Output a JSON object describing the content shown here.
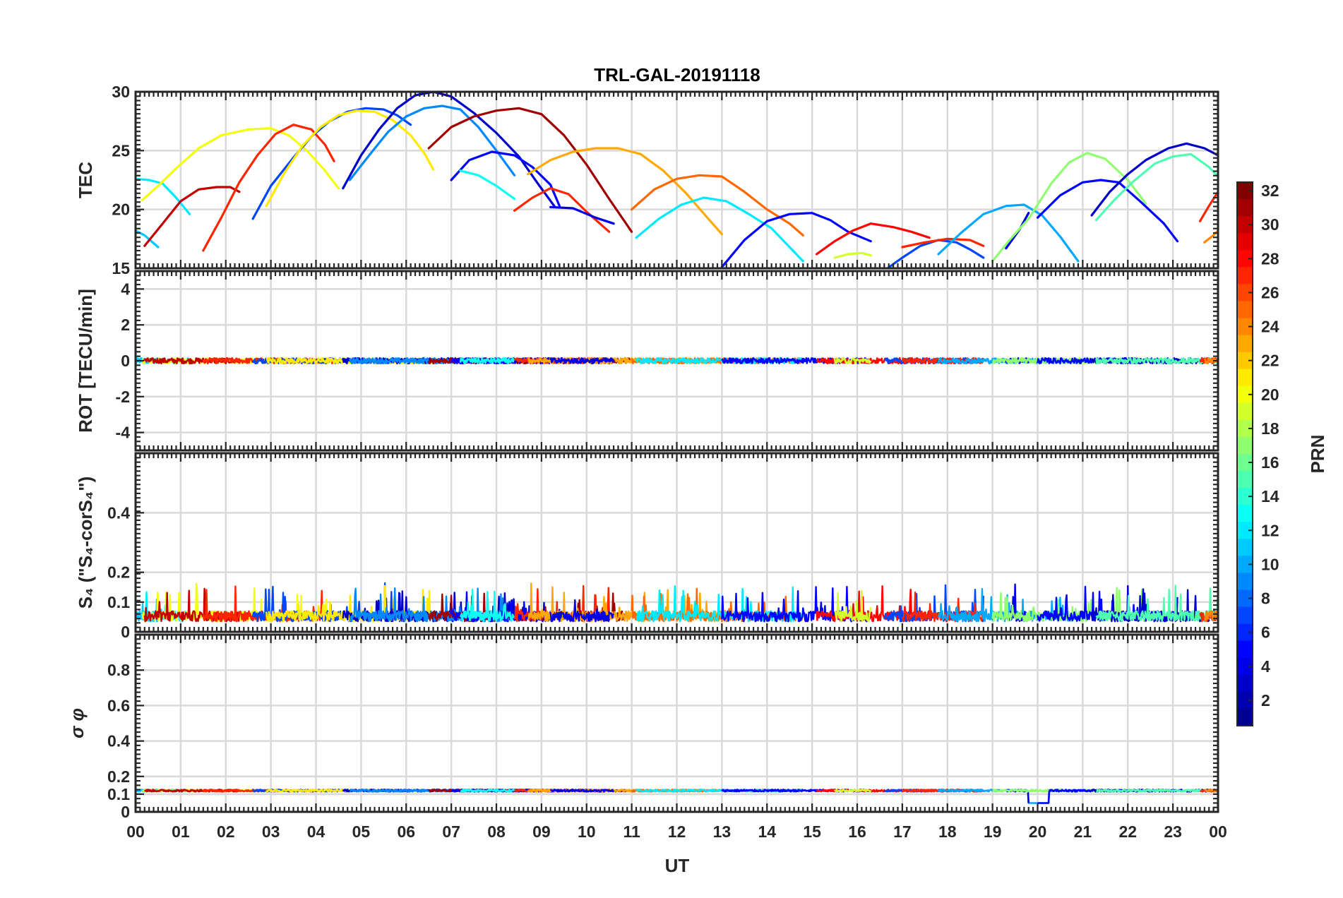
{
  "chart_data": {
    "type": "line",
    "title": "TRL-GAL-20191118",
    "xlabel": "UT",
    "xlim": [
      0,
      24
    ],
    "x_tick_labels": [
      "00",
      "01",
      "02",
      "03",
      "04",
      "05",
      "06",
      "07",
      "08",
      "09",
      "10",
      "11",
      "12",
      "13",
      "14",
      "15",
      "16",
      "17",
      "18",
      "19",
      "20",
      "21",
      "22",
      "23",
      "00"
    ],
    "grid": true,
    "colorbar": {
      "label": "PRN",
      "range": [
        1,
        32
      ],
      "tick_labels": [
        "2",
        "4",
        "6",
        "8",
        "10",
        "12",
        "14",
        "16",
        "18",
        "20",
        "22",
        "24",
        "26",
        "28",
        "30",
        "32"
      ],
      "tick_values": [
        2,
        4,
        6,
        8,
        10,
        12,
        14,
        16,
        18,
        20,
        22,
        24,
        26,
        28,
        30,
        32
      ],
      "colormap": "jet",
      "colormap_stops": [
        "#00008f",
        "#0000ff",
        "#00ffff",
        "#ffff00",
        "#ff0000",
        "#800000"
      ]
    },
    "panels": [
      {
        "id": "tec",
        "ylabel": "TEC",
        "ylim": [
          15,
          30
        ],
        "y_ticks": [
          15,
          20,
          25,
          30
        ],
        "y_tick_labels": [
          "15",
          "20",
          "25",
          "30"
        ],
        "series": [
          {
            "prn": 12,
            "x": [
              0.0,
              0.3,
              0.6,
              0.9,
              1.2
            ],
            "y": [
              22.6,
              22.5,
              22.2,
              21.0,
              19.6
            ]
          },
          {
            "prn": 11,
            "x": [
              0.0,
              0.2,
              0.5
            ],
            "y": [
              18.2,
              17.8,
              16.8
            ]
          },
          {
            "prn": 20,
            "x": [
              0.15,
              0.5,
              0.9,
              1.4,
              1.9,
              2.5,
              3.0,
              3.4,
              3.8,
              4.2,
              4.5
            ],
            "y": [
              20.8,
              22.0,
              23.5,
              25.2,
              26.3,
              26.8,
              26.9,
              26.3,
              25.0,
              23.3,
              21.8
            ]
          },
          {
            "prn": 30,
            "x": [
              0.2,
              0.6,
              1.0,
              1.4,
              1.8,
              2.1,
              2.3
            ],
            "y": [
              16.9,
              18.8,
              20.7,
              21.7,
              21.9,
              21.9,
              21.5
            ]
          },
          {
            "prn": 27,
            "x": [
              1.5,
              1.9,
              2.3,
              2.7,
              3.1,
              3.5,
              3.9,
              4.2,
              4.4
            ],
            "y": [
              16.5,
              19.3,
              22.3,
              24.6,
              26.4,
              27.2,
              26.8,
              25.5,
              24.1
            ]
          },
          {
            "prn": 7,
            "x": [
              2.6,
              3.0,
              3.5,
              3.9,
              4.3,
              4.7,
              5.1,
              5.5,
              5.8,
              6.1
            ],
            "y": [
              19.2,
              22.0,
              24.4,
              26.2,
              27.5,
              28.3,
              28.6,
              28.5,
              28.0,
              27.2
            ]
          },
          {
            "prn": 21,
            "x": [
              2.9,
              3.3,
              3.7,
              4.1,
              4.5,
              4.9,
              5.3,
              5.7,
              6.1,
              6.4,
              6.6
            ],
            "y": [
              20.3,
              23.1,
              25.4,
              27.0,
              28.0,
              28.4,
              28.3,
              27.6,
              26.3,
              24.8,
              23.4
            ]
          },
          {
            "prn": 3,
            "x": [
              4.6,
              5.0,
              5.4,
              5.8,
              6.2,
              6.6,
              7.0,
              7.5,
              8.0,
              8.5,
              8.9,
              9.3
            ],
            "y": [
              21.8,
              24.6,
              26.8,
              28.6,
              29.7,
              30.0,
              29.6,
              28.2,
              26.5,
              24.5,
              22.3,
              20.2
            ]
          },
          {
            "prn": 9,
            "x": [
              4.75,
              5.2,
              5.6,
              6.0,
              6.4,
              6.8,
              7.2,
              7.6,
              8.0,
              8.4
            ],
            "y": [
              22.5,
              24.7,
              26.6,
              27.9,
              28.6,
              28.8,
              28.5,
              27.0,
              25.0,
              22.9
            ]
          },
          {
            "prn": 31,
            "x": [
              6.5,
              7.0,
              7.5,
              8.0,
              8.5,
              9.0,
              9.5,
              10.0,
              10.5,
              11.0
            ],
            "y": [
              25.2,
              27.0,
              27.9,
              28.4,
              28.6,
              28.1,
              26.3,
              23.8,
              20.9,
              18.1
            ]
          },
          {
            "prn": 5,
            "x": [
              7.0,
              7.4,
              7.9,
              8.4,
              8.8,
              9.2,
              9.4
            ],
            "y": [
              22.5,
              24.2,
              24.9,
              24.6,
              23.6,
              22.1,
              20.3
            ]
          },
          {
            "prn": 13,
            "x": [
              7.2,
              7.6,
              8.0,
              8.4
            ],
            "y": [
              23.3,
              22.9,
              22.0,
              20.9
            ]
          },
          {
            "prn": 27,
            "x": [
              8.4,
              8.8,
              9.2,
              9.6,
              10.0,
              10.5
            ],
            "y": [
              19.9,
              21.0,
              21.8,
              21.3,
              19.8,
              18.1
            ]
          },
          {
            "prn": 23,
            "x": [
              8.7,
              9.2,
              9.7,
              10.2,
              10.7,
              11.2,
              11.7,
              12.2,
              12.7,
              13.0
            ],
            "y": [
              23.0,
              24.2,
              24.9,
              25.2,
              25.2,
              24.7,
              23.3,
              21.4,
              19.2,
              17.9
            ]
          },
          {
            "prn": 4,
            "x": [
              9.2,
              9.7,
              10.2,
              10.6
            ],
            "y": [
              20.2,
              20.1,
              19.3,
              18.8
            ]
          },
          {
            "prn": 25,
            "x": [
              11.0,
              11.5,
              12.0,
              12.5,
              13.0,
              13.5,
              14.0,
              14.5,
              14.8
            ],
            "y": [
              20.0,
              21.7,
              22.6,
              22.9,
              22.8,
              21.5,
              20.0,
              18.8,
              17.8
            ]
          },
          {
            "prn": 12,
            "x": [
              11.1,
              11.6,
              12.1,
              12.6,
              13.1,
              13.6,
              14.1,
              14.5,
              14.8
            ],
            "y": [
              17.6,
              19.2,
              20.4,
              21.0,
              20.7,
              19.6,
              18.4,
              16.8,
              15.6
            ]
          },
          {
            "prn": 5,
            "x": [
              13.0,
              13.5,
              14.0,
              14.5,
              15.0,
              15.4,
              15.8,
              16.3
            ],
            "y": [
              15.1,
              17.4,
              19.0,
              19.6,
              19.7,
              19.1,
              18.1,
              17.3
            ]
          },
          {
            "prn": 28,
            "x": [
              15.1,
              15.5,
              15.9,
              16.3,
              16.8,
              17.2,
              17.6
            ],
            "y": [
              16.2,
              17.3,
              18.2,
              18.8,
              18.5,
              18.1,
              17.6
            ]
          },
          {
            "prn": 19,
            "x": [
              15.5,
              15.8,
              16.1,
              16.3
            ],
            "y": [
              15.9,
              16.2,
              16.3,
              16.1
            ]
          },
          {
            "prn": 7,
            "x": [
              16.6,
              17.0,
              17.4,
              17.8,
              18.2,
              18.5,
              18.8
            ],
            "y": [
              14.8,
              15.9,
              16.9,
              17.4,
              17.2,
              16.6,
              15.9
            ]
          },
          {
            "prn": 27,
            "x": [
              17.0,
              17.5,
              18.0,
              18.5,
              18.8
            ],
            "y": [
              16.8,
              17.2,
              17.5,
              17.4,
              16.9
            ]
          },
          {
            "prn": 10,
            "x": [
              17.8,
              18.3,
              18.8,
              19.3,
              19.7,
              20.1,
              20.5,
              20.9
            ],
            "y": [
              16.2,
              18.0,
              19.6,
              20.3,
              20.4,
              19.5,
              17.7,
              15.6
            ]
          },
          {
            "prn": 4,
            "x": [
              19.3,
              19.6,
              19.8
            ],
            "y": [
              16.7,
              18.3,
              19.7
            ]
          },
          {
            "prn": 17,
            "x": [
              19.0,
              19.4,
              19.8,
              20.3,
              20.7,
              21.1,
              21.5,
              22.0,
              22.4
            ],
            "y": [
              15.6,
              17.5,
              19.2,
              22.2,
              24.0,
              24.8,
              24.3,
              22.5,
              20.5
            ]
          },
          {
            "prn": 5,
            "x": [
              20.0,
              20.5,
              21.0,
              21.4,
              21.8,
              22.3,
              22.8,
              23.1
            ],
            "y": [
              19.3,
              21.2,
              22.3,
              22.5,
              22.3,
              20.6,
              18.8,
              17.3
            ]
          },
          {
            "prn": 3,
            "x": [
              21.2,
              21.6,
              22.0,
              22.4,
              22.9,
              23.3,
              23.7,
              24.0
            ],
            "y": [
              19.5,
              21.5,
              23.0,
              24.2,
              25.2,
              25.6,
              25.2,
              24.6
            ]
          },
          {
            "prn": 15,
            "x": [
              21.3,
              21.7,
              22.1,
              22.6,
              23.0,
              23.4,
              23.8,
              24.0
            ],
            "y": [
              19.1,
              20.8,
              22.3,
              23.9,
              24.5,
              24.7,
              23.6,
              22.8
            ]
          },
          {
            "prn": 27,
            "x": [
              23.6,
              23.8,
              24.0
            ],
            "y": [
              19.0,
              20.3,
              21.5
            ]
          },
          {
            "prn": 24,
            "x": [
              23.7,
              23.9,
              24.0
            ],
            "y": [
              17.2,
              17.8,
              18.2
            ]
          }
        ]
      },
      {
        "id": "rot",
        "ylabel": "ROT [TECU/min]",
        "ylim": [
          -5,
          5
        ],
        "y_ticks": [
          -4,
          -2,
          0,
          2,
          4
        ],
        "y_tick_labels": [
          "-4",
          "-2",
          "0",
          "2",
          "4"
        ],
        "base": 0,
        "noise": 0.15
      },
      {
        "id": "s4",
        "ylabel": "S₄ (\"S₄-corS₄\")",
        "ylim": [
          0,
          0.6
        ],
        "y_ticks": [
          0,
          0.1,
          0.2,
          0.4
        ],
        "y_tick_labels": [
          "0",
          "0.1",
          "0.2",
          "0.4"
        ],
        "base": 0.035,
        "noise": 0.035,
        "max_spike": 0.17
      },
      {
        "id": "sigma",
        "ylabel": "σ φ",
        "ylim": [
          0,
          1
        ],
        "y_ticks": [
          0,
          0.1,
          0.2,
          0.4,
          0.6,
          0.8
        ],
        "y_tick_labels": [
          "0",
          "0.1",
          "0.2",
          "0.4",
          "0.6",
          "0.8"
        ],
        "base": 0.12,
        "noise": 0.006,
        "dip": {
          "x": [
            19.8,
            20.25
          ],
          "y": 0.05
        }
      }
    ]
  }
}
